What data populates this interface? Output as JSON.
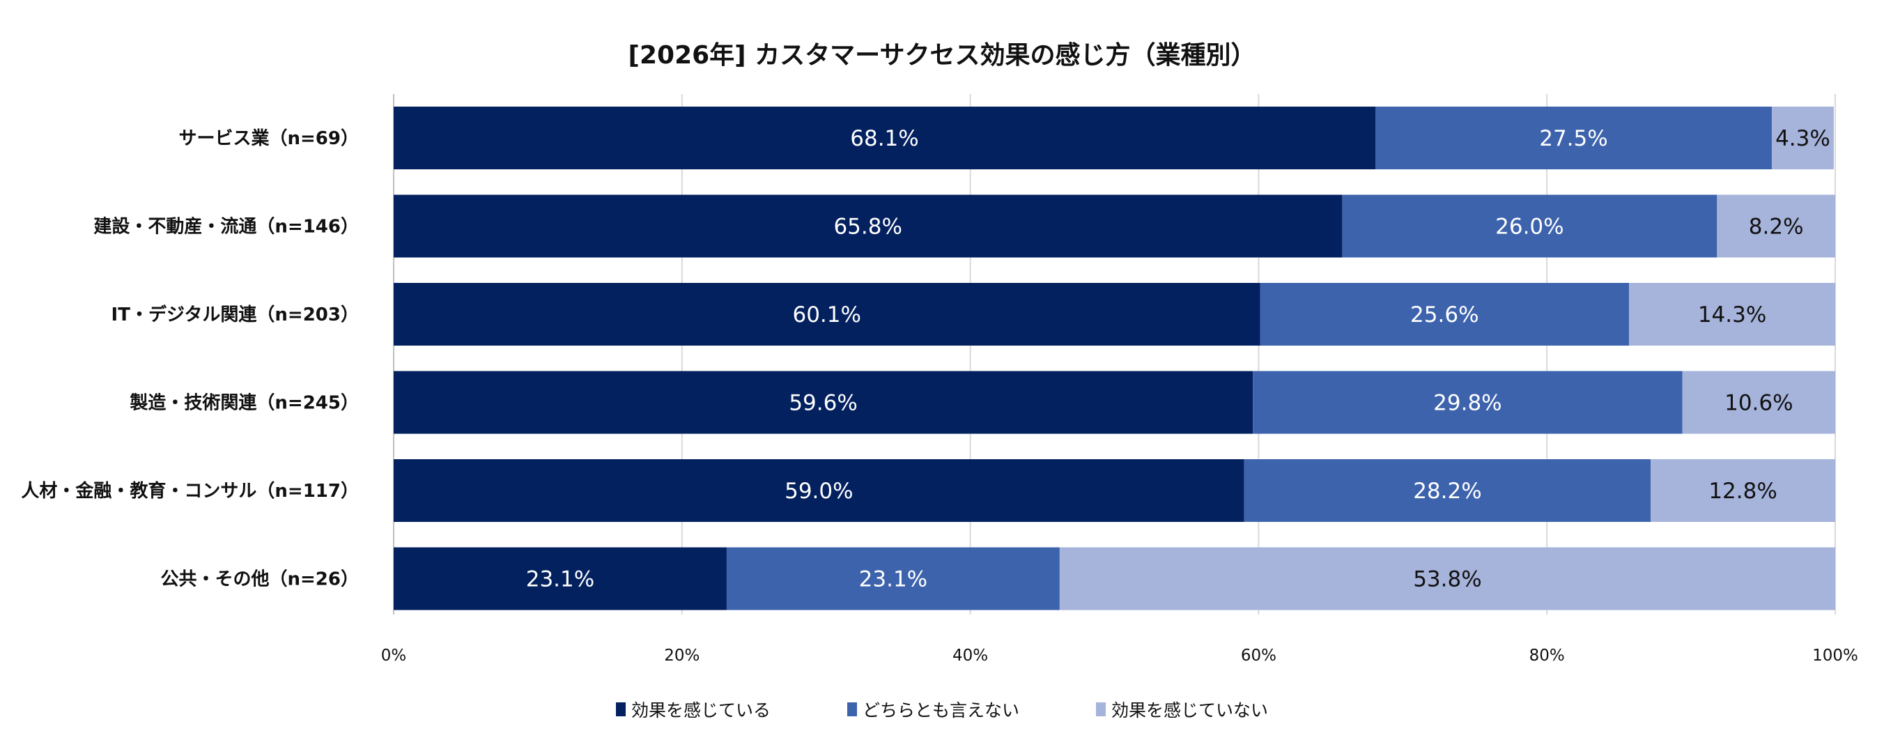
{
  "chart_data": {
    "type": "bar",
    "orientation": "horizontal",
    "stacked": true,
    "title": "[2026年] カスタマーサクセス効果の感じ方（業種別）",
    "categories": [
      "サービス業（n=69）",
      "建設・不動産・流通（n=146）",
      "IT・デジタル関連（n=203）",
      "製造・技術関連（n=245）",
      "人材・金融・教育・コンサル（n=117）",
      "公共・その他（n=26）"
    ],
    "series": [
      {
        "name": "効果を感じている",
        "values": [
          68.1,
          65.8,
          60.1,
          59.6,
          59.0,
          23.1
        ],
        "color": "#03205f"
      },
      {
        "name": "どちらとも言えない",
        "values": [
          27.5,
          26.0,
          25.6,
          29.8,
          28.2,
          23.1
        ],
        "color": "#3d63ad"
      },
      {
        "name": "効果を感じていない",
        "values": [
          4.3,
          8.2,
          14.3,
          10.6,
          12.8,
          53.8
        ],
        "color": "#a6b3da"
      }
    ],
    "xlim": [
      0,
      100
    ],
    "xticks": [
      "0%",
      "20%",
      "40%",
      "60%",
      "80%",
      "100%"
    ],
    "grid": true,
    "legend_position": "bottom"
  }
}
